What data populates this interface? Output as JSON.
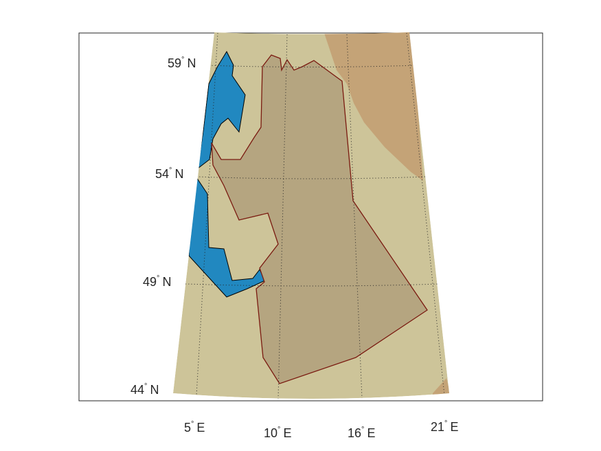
{
  "map": {
    "colors": {
      "background": "#ffffff",
      "axes_frame": "#262626",
      "land": "#cdc499",
      "highland": "#c4a377",
      "sea": "#2188c0",
      "region_fill": "#b5a580",
      "region_border": "#7a1a10",
      "coast": "#000000"
    },
    "lat_ticks": [
      {
        "value": 59,
        "num": "59",
        "hemi": "N"
      },
      {
        "value": 54,
        "num": "54",
        "hemi": "N"
      },
      {
        "value": 49,
        "num": "49",
        "hemi": "N"
      },
      {
        "value": 44,
        "num": "44",
        "hemi": "N"
      }
    ],
    "lon_ticks": [
      {
        "value": 5,
        "num": "5",
        "hemi": "E"
      },
      {
        "value": 10,
        "num": "10",
        "hemi": "E"
      },
      {
        "value": 16,
        "num": "16",
        "hemi": "E"
      },
      {
        "value": 21,
        "num": "21",
        "hemi": "E"
      }
    ],
    "degree_symbol": "°",
    "grid": "dotted",
    "regions": [
      {
        "name": "region-outline",
        "type": "polygon"
      },
      {
        "name": "sea-north",
        "type": "water"
      },
      {
        "name": "sea-south",
        "type": "water"
      }
    ]
  }
}
